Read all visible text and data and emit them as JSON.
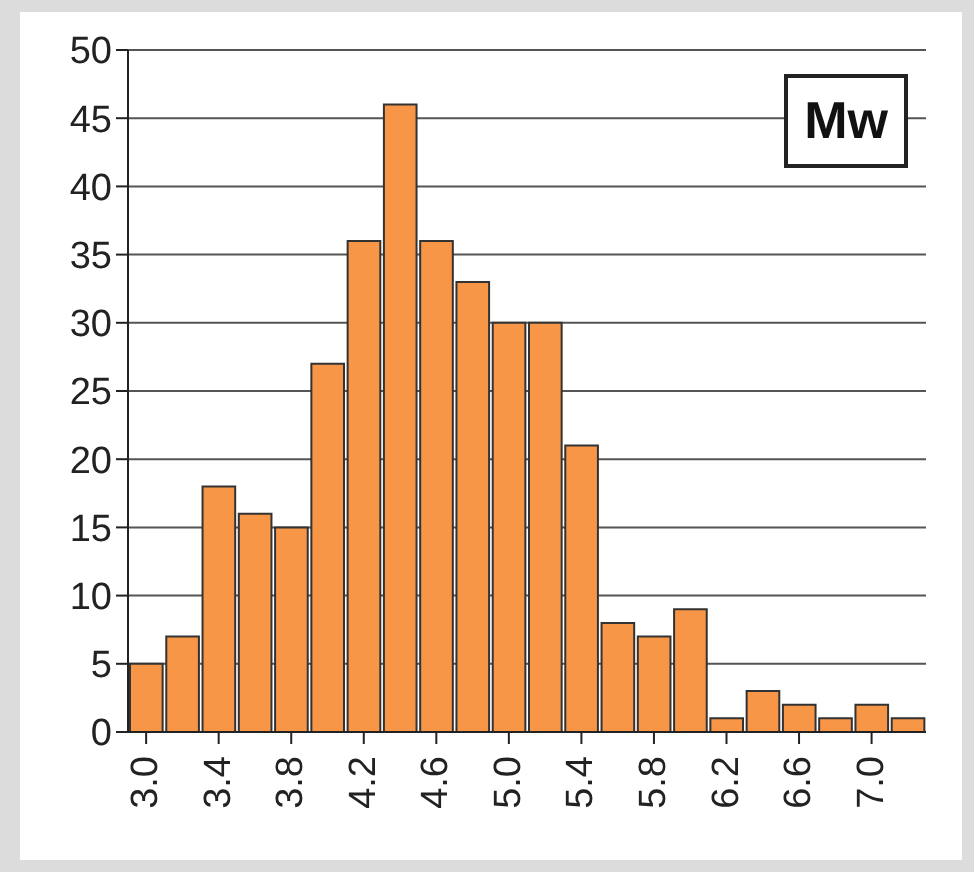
{
  "chart_data": {
    "type": "histogram",
    "bins": [
      2.9,
      3.1,
      3.3,
      3.5,
      3.7,
      3.9,
      4.1,
      4.3,
      4.5,
      4.7,
      4.9,
      5.1,
      5.3,
      5.5,
      5.7,
      5.9,
      6.1,
      6.3,
      6.5,
      6.7,
      6.9,
      7.1,
      7.3
    ],
    "values": [
      5,
      7,
      18,
      16,
      15,
      27,
      36,
      46,
      36,
      33,
      30,
      30,
      21,
      8,
      7,
      9,
      1,
      3,
      2,
      1,
      2,
      1
    ],
    "color": "#f79646",
    "xlim": [
      2.9,
      7.3
    ],
    "xticks": [
      {
        "value": 3.0,
        "label": "3.0"
      },
      {
        "value": 3.4,
        "label": "3.4"
      },
      {
        "value": 3.8,
        "label": "3.8"
      },
      {
        "value": 4.2,
        "label": "4.2"
      },
      {
        "value": 4.6,
        "label": "4.6"
      },
      {
        "value": 5.0,
        "label": "5.0"
      },
      {
        "value": 5.4,
        "label": "5.4"
      },
      {
        "value": 5.8,
        "label": "5.8"
      },
      {
        "value": 6.2,
        "label": "6.2"
      },
      {
        "value": 6.6,
        "label": "6.6"
      },
      {
        "value": 7.0,
        "label": "7.0"
      }
    ],
    "ylim": [
      0,
      50
    ],
    "yticks": [
      0,
      5,
      10,
      15,
      20,
      25,
      30,
      35,
      40,
      45,
      50
    ],
    "grid": "y",
    "annotations": [
      "Mw"
    ]
  }
}
